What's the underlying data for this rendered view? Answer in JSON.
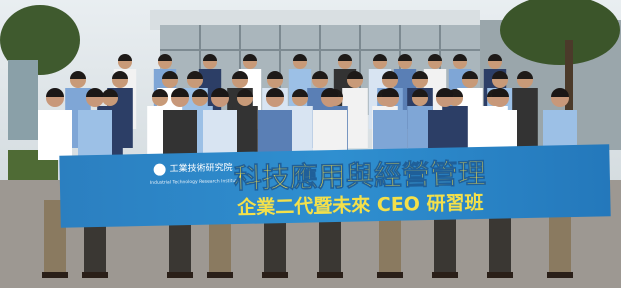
{
  "banner": {
    "logo_text": "工業技術研究院",
    "logo_subtext": "Industrial Technology Research Institute",
    "title": "科技應用與經營管理",
    "subtitle": "企業二代暨未來 CEO 研習班"
  }
}
